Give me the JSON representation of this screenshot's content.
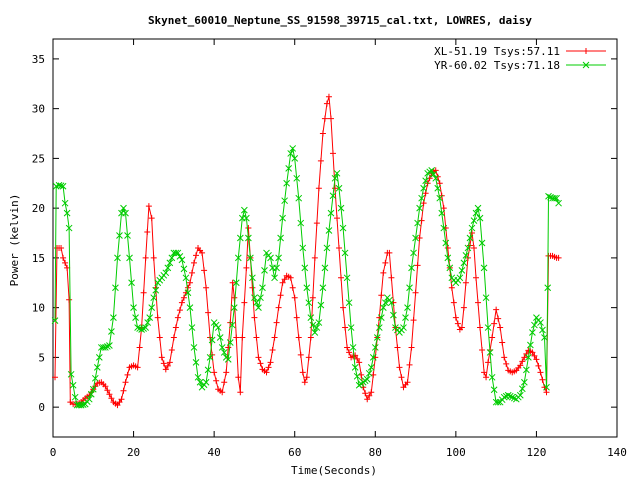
{
  "chart_data": {
    "type": "line",
    "title": "Skynet_60010_Neptune_SS_91598_39715_cal.txt, LOWRES, daisy",
    "xlabel": "Time(Seconds)",
    "ylabel": "Power (kelvin)",
    "xlim": [
      0,
      140
    ],
    "ylim": [
      -3,
      37
    ],
    "xticks": [
      0,
      20,
      40,
      60,
      80,
      100,
      120,
      140
    ],
    "yticks": [
      0,
      5,
      10,
      15,
      20,
      25,
      30,
      35
    ],
    "grid": false,
    "legend_position": "top-right",
    "series": [
      {
        "name": "XL-51.19 Tsys:57.11",
        "color": "#ff0000",
        "marker": "plus",
        "points": [
          [
            0.5,
            3
          ],
          [
            1,
            16
          ],
          [
            2,
            16
          ],
          [
            2.5,
            15
          ],
          [
            3,
            14.5
          ],
          [
            3.5,
            14
          ],
          [
            4,
            10.8
          ],
          [
            4.3,
            0.5
          ],
          [
            5,
            0.3
          ],
          [
            6,
            0.3
          ],
          [
            7,
            0.5
          ],
          [
            8,
            0.9
          ],
          [
            9,
            1.2
          ],
          [
            10,
            1.8
          ],
          [
            11,
            2.4
          ],
          [
            12,
            2.5
          ],
          [
            13,
            2.1
          ],
          [
            14,
            1.3
          ],
          [
            15,
            0.5
          ],
          [
            16,
            0.2
          ],
          [
            17,
            0.8
          ],
          [
            18,
            2.5
          ],
          [
            19,
            4
          ],
          [
            20,
            4.2
          ],
          [
            21,
            4
          ],
          [
            22,
            8
          ],
          [
            23,
            15
          ],
          [
            23.8,
            20.2
          ],
          [
            24.5,
            19
          ],
          [
            25,
            15
          ],
          [
            26,
            9
          ],
          [
            27,
            5
          ],
          [
            28,
            3.8
          ],
          [
            29,
            4.5
          ],
          [
            30,
            7
          ],
          [
            31,
            9
          ],
          [
            32,
            10.5
          ],
          [
            33,
            11.5
          ],
          [
            34,
            12.5
          ],
          [
            35,
            14.5
          ],
          [
            36,
            16
          ],
          [
            37,
            15.5
          ],
          [
            38,
            12
          ],
          [
            39,
            7
          ],
          [
            40,
            3.5
          ],
          [
            41,
            1.8
          ],
          [
            42,
            1.5
          ],
          [
            43,
            3.5
          ],
          [
            44,
            8.5
          ],
          [
            44.6,
            12.5
          ],
          [
            45,
            11
          ],
          [
            46,
            3
          ],
          [
            46.5,
            1.5
          ],
          [
            47,
            7
          ],
          [
            48,
            14
          ],
          [
            48.5,
            18
          ],
          [
            49,
            15
          ],
          [
            50,
            9
          ],
          [
            51,
            5
          ],
          [
            52,
            3.8
          ],
          [
            53,
            3.5
          ],
          [
            54,
            4.5
          ],
          [
            55,
            7
          ],
          [
            56,
            10
          ],
          [
            57,
            12.5
          ],
          [
            58,
            13.2
          ],
          [
            59,
            13
          ],
          [
            60,
            11
          ],
          [
            61,
            7
          ],
          [
            62,
            3.5
          ],
          [
            62.5,
            2.5
          ],
          [
            63,
            3
          ],
          [
            64,
            7
          ],
          [
            65,
            15
          ],
          [
            66,
            22
          ],
          [
            67,
            27.5
          ],
          [
            68,
            30.5
          ],
          [
            68.5,
            31.2
          ],
          [
            69,
            29
          ],
          [
            70,
            22
          ],
          [
            71,
            16
          ],
          [
            72,
            10
          ],
          [
            73,
            6
          ],
          [
            74,
            5
          ],
          [
            75,
            5.2
          ],
          [
            76,
            4.5
          ],
          [
            77,
            2
          ],
          [
            78,
            0.8
          ],
          [
            79,
            1.5
          ],
          [
            80,
            5
          ],
          [
            81,
            9
          ],
          [
            82,
            13.5
          ],
          [
            83,
            15.5
          ],
          [
            83.5,
            15.5
          ],
          [
            84,
            13
          ],
          [
            85,
            8
          ],
          [
            86,
            4
          ],
          [
            87,
            2
          ],
          [
            88,
            2.5
          ],
          [
            89,
            6
          ],
          [
            90,
            11.5
          ],
          [
            91,
            17
          ],
          [
            92,
            20.5
          ],
          [
            93,
            22.5
          ],
          [
            94,
            23.5
          ],
          [
            95,
            23.8
          ],
          [
            96,
            22.5
          ],
          [
            97,
            20
          ],
          [
            98,
            16
          ],
          [
            99,
            12
          ],
          [
            100,
            9
          ],
          [
            101,
            7.8
          ],
          [
            101.5,
            8
          ],
          [
            102,
            10
          ],
          [
            103,
            15
          ],
          [
            104,
            17.5
          ],
          [
            104.5,
            16
          ],
          [
            105,
            13
          ],
          [
            106,
            8
          ],
          [
            107,
            3.5
          ],
          [
            107.5,
            3
          ],
          [
            108,
            4.5
          ],
          [
            109,
            7
          ],
          [
            110,
            9.8
          ],
          [
            111,
            8
          ],
          [
            112,
            5
          ],
          [
            113,
            3.7
          ],
          [
            114,
            3.5
          ],
          [
            115,
            3.7
          ],
          [
            116,
            4.2
          ],
          [
            117,
            5
          ],
          [
            118,
            5.7
          ],
          [
            119,
            5.5
          ],
          [
            120,
            4.8
          ],
          [
            121,
            3.5
          ],
          [
            122,
            2
          ],
          [
            122.5,
            1.5
          ],
          [
            123,
            15.2
          ],
          [
            124,
            15.2
          ],
          [
            125,
            15
          ],
          [
            125.5,
            15
          ]
        ]
      },
      {
        "name": "YR-60.02 Tsys:71.18",
        "color": "#00cc00",
        "marker": "cross",
        "points": [
          [
            0.5,
            8.7
          ],
          [
            0.8,
            22.2
          ],
          [
            1.5,
            22.3
          ],
          [
            2.5,
            22.2
          ],
          [
            3,
            20.5
          ],
          [
            3.5,
            19.5
          ],
          [
            4,
            18
          ],
          [
            4.5,
            3.3
          ],
          [
            5,
            2.2
          ],
          [
            5.5,
            1
          ],
          [
            6,
            0.2
          ],
          [
            7,
            0.2
          ],
          [
            8,
            0.3
          ],
          [
            9,
            0.8
          ],
          [
            10,
            1.8
          ],
          [
            11,
            4
          ],
          [
            12,
            6
          ],
          [
            13,
            6
          ],
          [
            14,
            6.2
          ],
          [
            15,
            9
          ],
          [
            16,
            15
          ],
          [
            17,
            19.5
          ],
          [
            17.5,
            20
          ],
          [
            18,
            19.5
          ],
          [
            19,
            15
          ],
          [
            20,
            10
          ],
          [
            21,
            8
          ],
          [
            22,
            7.8
          ],
          [
            23,
            8
          ],
          [
            24,
            9
          ],
          [
            25,
            11
          ],
          [
            26,
            12.5
          ],
          [
            27,
            13
          ],
          [
            28,
            13.5
          ],
          [
            29,
            14.5
          ],
          [
            30,
            15.5
          ],
          [
            31,
            15.5
          ],
          [
            32,
            14.8
          ],
          [
            33,
            13
          ],
          [
            34,
            10
          ],
          [
            35,
            6
          ],
          [
            36,
            3
          ],
          [
            37,
            2
          ],
          [
            38,
            2.5
          ],
          [
            39,
            5
          ],
          [
            40,
            8.5
          ],
          [
            41,
            8
          ],
          [
            42,
            6
          ],
          [
            43,
            5
          ],
          [
            43.5,
            4.8
          ],
          [
            44,
            6.5
          ],
          [
            45,
            10
          ],
          [
            46,
            15
          ],
          [
            47,
            19
          ],
          [
            47.5,
            19.8
          ],
          [
            48,
            19
          ],
          [
            49,
            15
          ],
          [
            50,
            11
          ],
          [
            51,
            10
          ],
          [
            52,
            12
          ],
          [
            53,
            15.5
          ],
          [
            54,
            15
          ],
          [
            55,
            13
          ],
          [
            56,
            15
          ],
          [
            57,
            19
          ],
          [
            58,
            22.5
          ],
          [
            59,
            25.5
          ],
          [
            59.5,
            26
          ],
          [
            60,
            25
          ],
          [
            61,
            21
          ],
          [
            62,
            16
          ],
          [
            63,
            12
          ],
          [
            64,
            9
          ],
          [
            65,
            7.5
          ],
          [
            66,
            8.5
          ],
          [
            67,
            12
          ],
          [
            68,
            16
          ],
          [
            69,
            19.5
          ],
          [
            70,
            23
          ],
          [
            70.5,
            23.5
          ],
          [
            71,
            22
          ],
          [
            72,
            18
          ],
          [
            73,
            13
          ],
          [
            74,
            8
          ],
          [
            75,
            4
          ],
          [
            76,
            2.2
          ],
          [
            77,
            2.5
          ],
          [
            78,
            2.8
          ],
          [
            79,
            4
          ],
          [
            80,
            6
          ],
          [
            81,
            8
          ],
          [
            82,
            10
          ],
          [
            83,
            11
          ],
          [
            84,
            10.5
          ],
          [
            85,
            8
          ],
          [
            86,
            7.5
          ],
          [
            87,
            8
          ],
          [
            88,
            10
          ],
          [
            89,
            14
          ],
          [
            90,
            17
          ],
          [
            91,
            20
          ],
          [
            92,
            22
          ],
          [
            93,
            23.5
          ],
          [
            94,
            23.8
          ],
          [
            95,
            23
          ],
          [
            96,
            21
          ],
          [
            97,
            18
          ],
          [
            98,
            15
          ],
          [
            99,
            13
          ],
          [
            100,
            12.5
          ],
          [
            101,
            13
          ],
          [
            102,
            14.5
          ],
          [
            103,
            16
          ],
          [
            104,
            18
          ],
          [
            105,
            19.5
          ],
          [
            105.5,
            20
          ],
          [
            106,
            19
          ],
          [
            107,
            14
          ],
          [
            108,
            8
          ],
          [
            109,
            3
          ],
          [
            110,
            0.5
          ],
          [
            111,
            0.5
          ],
          [
            112,
            1
          ],
          [
            113,
            1.2
          ],
          [
            114,
            1
          ],
          [
            115,
            0.8
          ],
          [
            116,
            1.2
          ],
          [
            117,
            2.5
          ],
          [
            118,
            5
          ],
          [
            119,
            7.5
          ],
          [
            120,
            9
          ],
          [
            121,
            8.5
          ],
          [
            122,
            7
          ],
          [
            122.5,
            2
          ],
          [
            122.8,
            12
          ],
          [
            123,
            21.2
          ],
          [
            124,
            21
          ],
          [
            125,
            21
          ],
          [
            125.5,
            20.5
          ]
        ]
      }
    ]
  }
}
